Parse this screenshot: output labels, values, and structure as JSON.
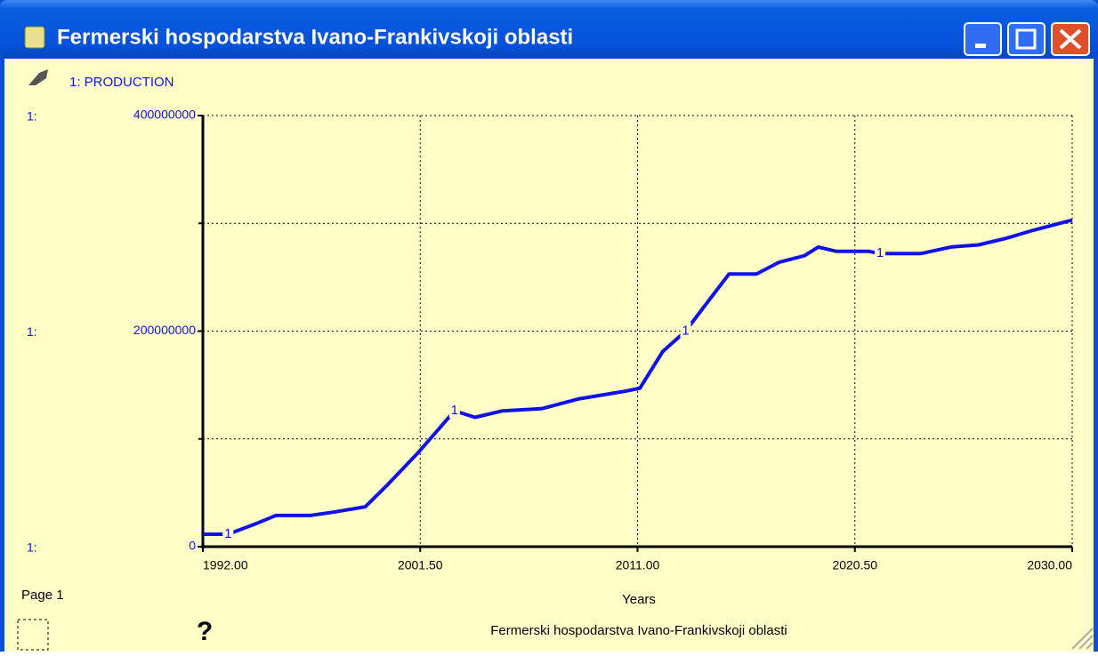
{
  "window": {
    "title": "Fermerski hospodarstva Ivano-Frankivskoji oblasti"
  },
  "chart_data": {
    "type": "line",
    "axis_prefix": "1:",
    "series_marker": "1",
    "series": [
      {
        "name": "1: PRODUCTION",
        "color": "#1010e8",
        "x": [
          1992,
          1993.1,
          1994.4,
          1995.2,
          1996.7,
          1997.7,
          1999.1,
          2000.1,
          2001.4,
          2003.0,
          2003.9,
          2005.1,
          2006.8,
          2008.4,
          2010.4,
          2011.1,
          2012.1,
          2013.1,
          2014.1,
          2015.0,
          2016.2,
          2017.2,
          2018.3,
          2018.9,
          2019.7,
          2021.1,
          2021.6,
          2023.4,
          2024.7,
          2025.9,
          2027.1,
          2028.2,
          2030
        ],
        "values": [
          11500000,
          11500000,
          22000000,
          29000000,
          29000000,
          32000000,
          37000000,
          58000000,
          87000000,
          126000000,
          120000000,
          126000000,
          128000000,
          137000000,
          144000000,
          147000000,
          181000000,
          200000000,
          228000000,
          253000000,
          253000000,
          264000000,
          270000000,
          278000000,
          274000000,
          274000000,
          272000000,
          272000000,
          278000000,
          280000000,
          286000000,
          293000000,
          303000000
        ]
      }
    ],
    "xlabel": "Years",
    "xlim": [
      1992,
      2030
    ],
    "xticks": [
      {
        "value": 1992,
        "label": "1992.00"
      },
      {
        "value": 2001.5,
        "label": "2001.50"
      },
      {
        "value": 2011,
        "label": "2011.00"
      },
      {
        "value": 2020.5,
        "label": "2020.50"
      },
      {
        "value": 2030,
        "label": "2030.00"
      }
    ],
    "ylim": [
      0,
      400000000
    ],
    "yticks": [
      0,
      200000000,
      400000000
    ],
    "yminor_ticks": [
      100000000,
      300000000
    ],
    "grid": true
  },
  "page_label": "Page 1",
  "help": "?",
  "footer": "Fermerski hospodarstva Ivano-Frankivskoji oblasti"
}
